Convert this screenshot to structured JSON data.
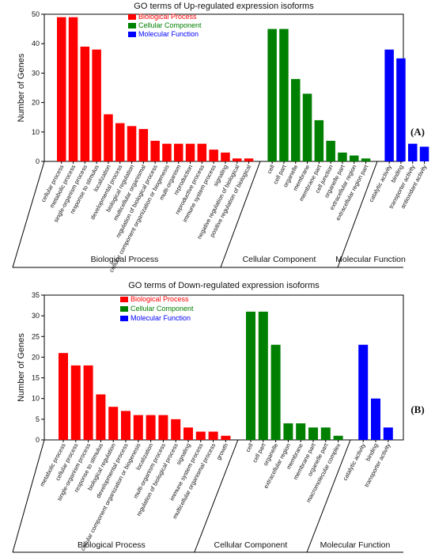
{
  "colors": {
    "biological": "#ff0000",
    "cellular": "#008000",
    "molecular": "#0000ff"
  },
  "chart_data": [
    {
      "type": "bar",
      "panel_label": "(A)",
      "title": "GO terms of Up-regulated expression isoforms",
      "ylabel": "Number of Genes",
      "ylim": [
        0,
        50
      ],
      "yticks": [
        0,
        10,
        20,
        30,
        40,
        50
      ],
      "legend": [
        "Biological Process",
        "Cellular Component",
        "Molecular Function"
      ],
      "legend_position": "top-left",
      "groups": [
        {
          "name": "Biological Process",
          "color": "biological",
          "categories": [
            "cellular process",
            "metabolic process",
            "single-organism process",
            "response to stimulus",
            "localization",
            "developmental process",
            "biological regulation",
            "multicellular organismal",
            "regulation of biological process",
            "cellular component organization or biogenesis",
            "multi-organism",
            "reproduction",
            "reproductive process",
            "immune system process",
            "signaling",
            "negative regulation of biological",
            "positive regulation of biological"
          ],
          "values": [
            49,
            49,
            39,
            38,
            16,
            13,
            12,
            11,
            7,
            6,
            6,
            6,
            6,
            4,
            3,
            1,
            1
          ]
        },
        {
          "name": "Cellular Component",
          "color": "cellular",
          "categories": [
            "cell",
            "cell part",
            "organelle",
            "membrane",
            "membrane part",
            "cell junction",
            "organelle part",
            "extracellular region",
            "extracellular region part"
          ],
          "values": [
            45,
            45,
            28,
            23,
            14,
            7,
            3,
            2,
            1
          ]
        },
        {
          "name": "Molecular Function",
          "color": "molecular",
          "categories": [
            "catalytic activity",
            "binding",
            "transporter activity",
            "antioxidant activity"
          ],
          "values": [
            38,
            35,
            6,
            5
          ]
        }
      ]
    },
    {
      "type": "bar",
      "panel_label": "(B)",
      "title": "GO terms of Down-regulated expression isoforms",
      "ylabel": "Number of Genes",
      "ylim": [
        0,
        35
      ],
      "yticks": [
        0,
        5,
        10,
        15,
        20,
        25,
        30,
        35
      ],
      "legend": [
        "Biological Process",
        "Cellular Component",
        "Molecular Function"
      ],
      "legend_position": "top-left",
      "groups": [
        {
          "name": "Biological Process",
          "color": "biological",
          "categories": [
            "metabolic process",
            "cellular process",
            "single-organism process",
            "response to stimulus",
            "biological regulation",
            "developmental process",
            "cellular component organization or biogenesis",
            "localization",
            "multi-organism process",
            "regulation of biological process",
            "signaling",
            "immune system process",
            "multicellular organismal process",
            "growth"
          ],
          "values": [
            21,
            18,
            18,
            11,
            8,
            7,
            6,
            6,
            6,
            5,
            3,
            2,
            2,
            1
          ]
        },
        {
          "name": "Cellular Component",
          "color": "cellular",
          "categories": [
            "cell",
            "cell part",
            "organelle",
            "extracellular region",
            "membrane",
            "membrane part",
            "organelle part",
            "macromolecular complex"
          ],
          "values": [
            31,
            31,
            23,
            4,
            4,
            3,
            3,
            1
          ]
        },
        {
          "name": "Molecular Function",
          "color": "molecular",
          "categories": [
            "catalytic activity",
            "binding",
            "transporter activity"
          ],
          "values": [
            23,
            10,
            3
          ]
        }
      ]
    }
  ]
}
